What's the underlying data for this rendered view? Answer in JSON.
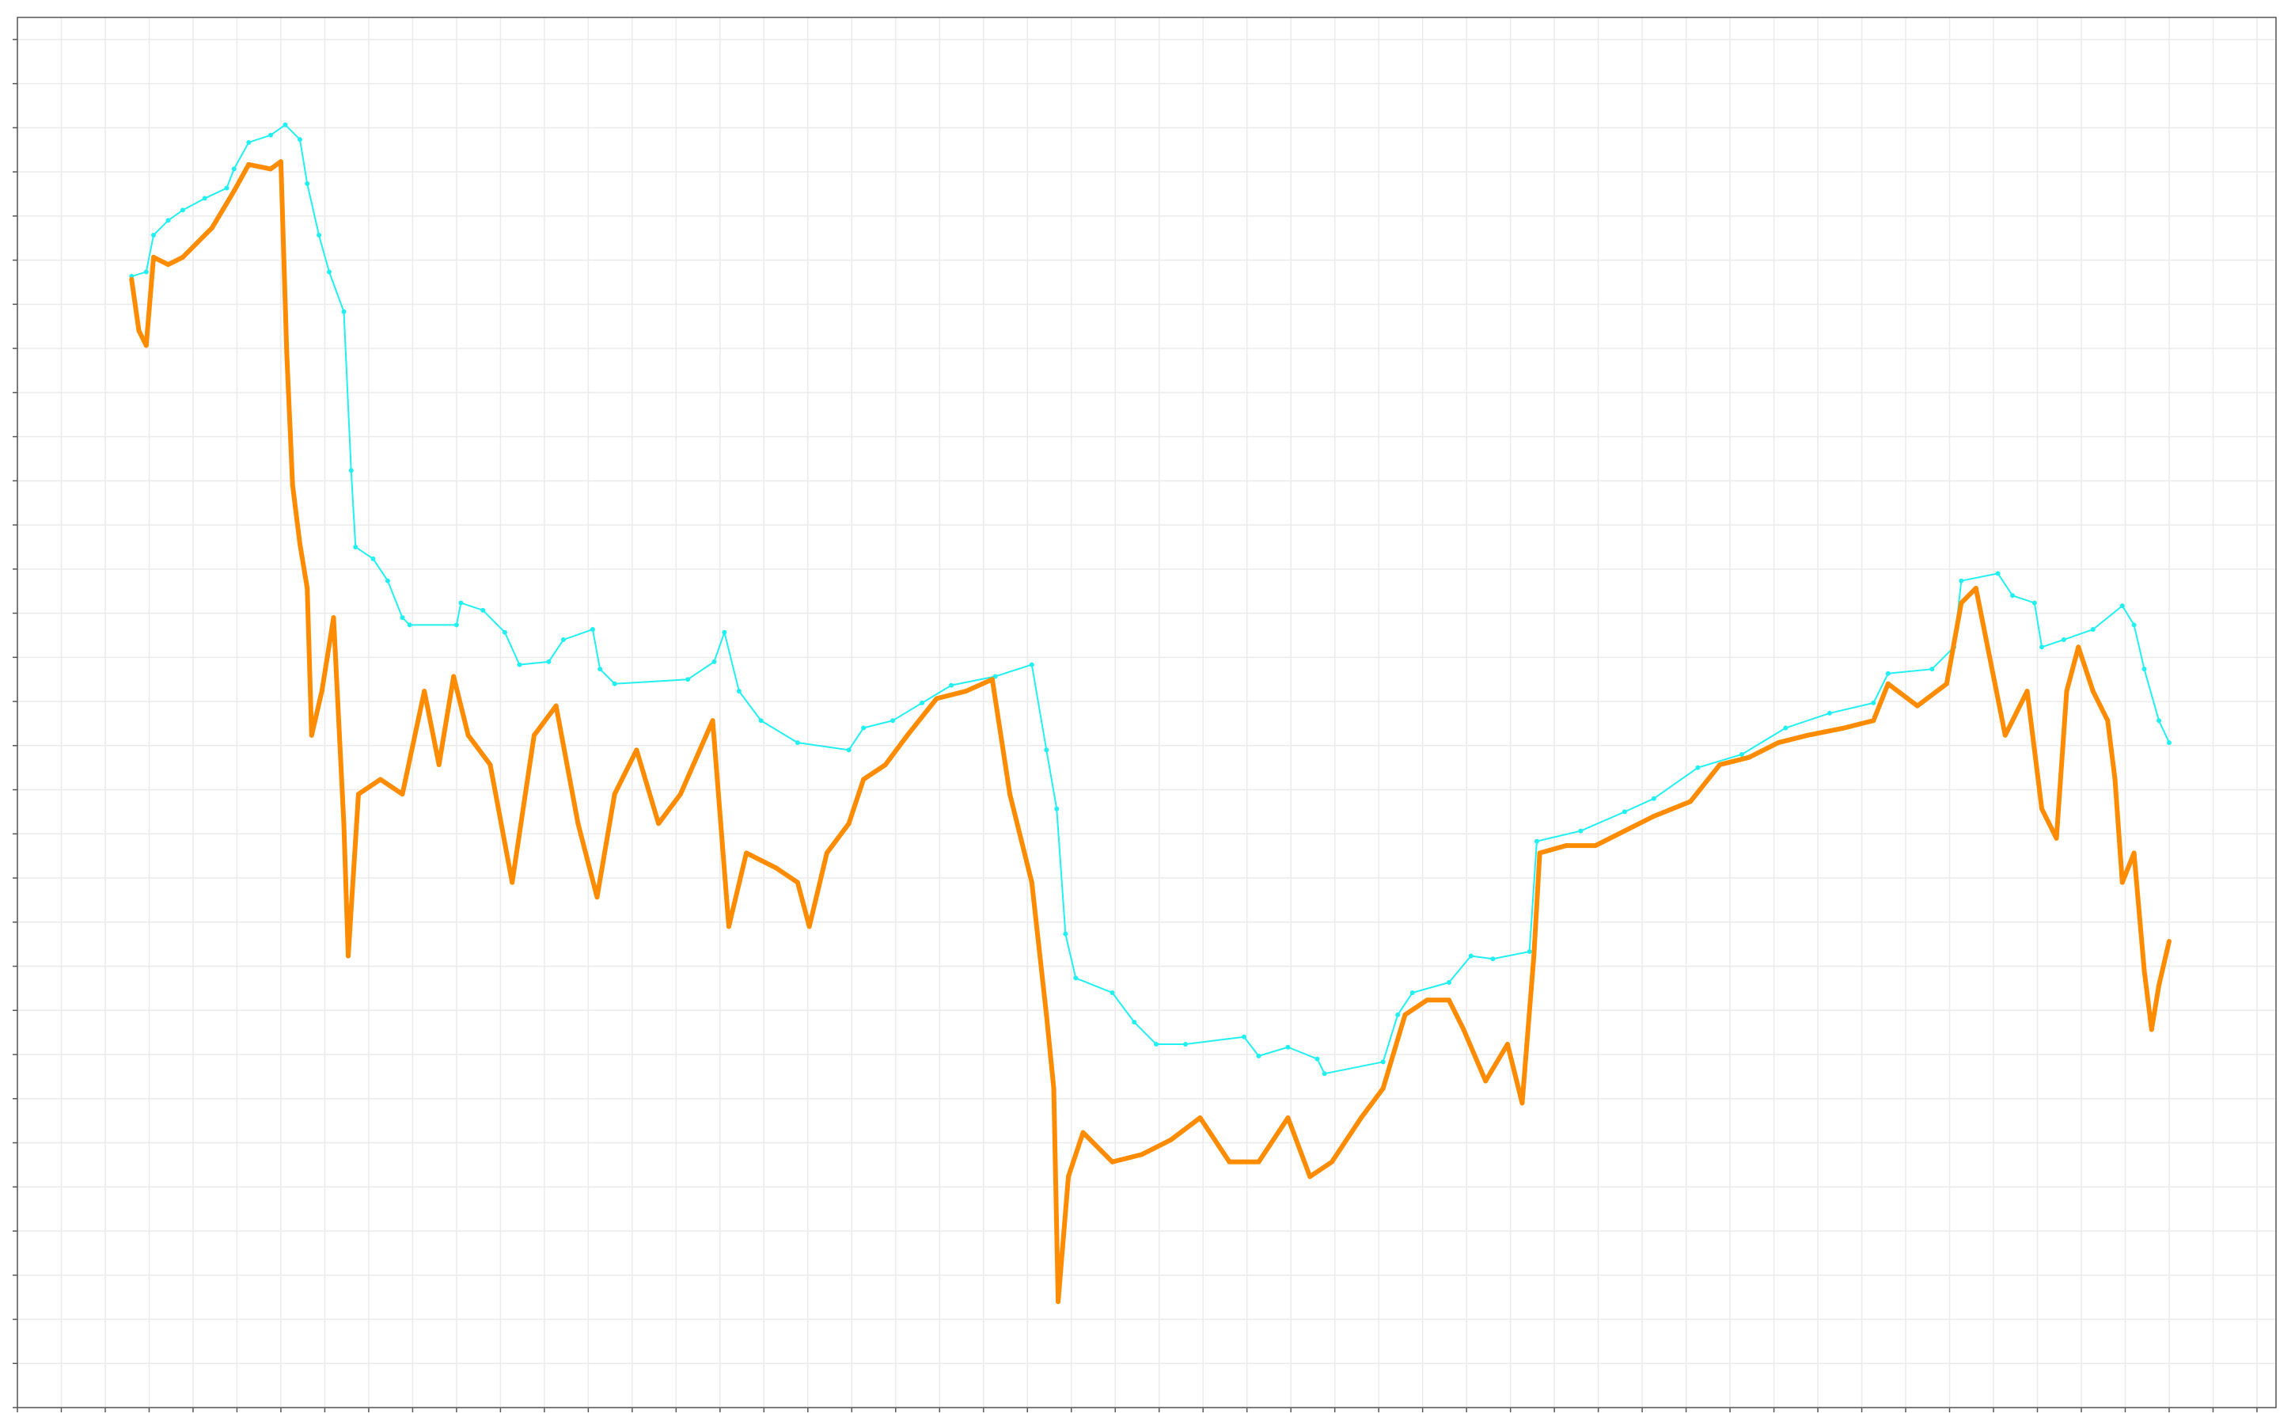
{
  "chart_data": {
    "type": "line",
    "xlim": [
      0,
      1543
    ],
    "ylim": [
      0,
      945
    ],
    "grid": true,
    "xticks": [
      0,
      30,
      60,
      90,
      120,
      150,
      180,
      210,
      240,
      270,
      300,
      330,
      360,
      390,
      420,
      450,
      480,
      510,
      540,
      570,
      600,
      630,
      660,
      690,
      720,
      750,
      780,
      810,
      840,
      870,
      900,
      930,
      960,
      990,
      1020,
      1050,
      1080,
      1110,
      1140,
      1170,
      1200,
      1230,
      1260,
      1290,
      1320,
      1350,
      1380,
      1410,
      1440,
      1470,
      1500,
      1530
    ],
    "yticks": [
      0,
      30,
      60,
      90,
      120,
      150,
      180,
      210,
      240,
      270,
      300,
      330,
      360,
      390,
      420,
      450,
      480,
      510,
      540,
      570,
      600,
      630,
      660,
      690,
      720,
      750,
      780,
      810,
      840,
      870,
      900,
      930
    ],
    "series": [
      {
        "color": "#22f0f0",
        "width": 2,
        "marker": 3,
        "x": [
          78,
          88,
          93,
          103,
          113,
          128,
          143,
          148,
          158,
          173,
          183,
          193,
          198,
          206,
          213,
          223,
          228,
          231,
          243,
          253,
          263,
          268,
          300,
          303,
          318,
          333,
          343,
          363,
          373,
          393,
          398,
          408,
          458,
          476,
          483,
          493,
          508,
          533,
          568,
          578,
          598,
          618,
          638,
          668,
          693,
          703,
          710,
          716,
          723,
          748,
          763,
          778,
          798,
          838,
          848,
          868,
          888,
          893,
          933,
          943,
          953,
          978,
          993,
          1008,
          1033,
          1038,
          1068,
          1098,
          1118,
          1148,
          1178,
          1208,
          1238,
          1268,
          1278,
          1308,
          1323,
          1328,
          1353,
          1363,
          1378,
          1383,
          1398,
          1418,
          1438,
          1446,
          1453,
          1463,
          1470
        ],
        "values": [
          769,
          772,
          797,
          807,
          814,
          822,
          829,
          842,
          860,
          865,
          872,
          862,
          832,
          797,
          772,
          745,
          637,
          585,
          577,
          562,
          537,
          532,
          532,
          547,
          542,
          527,
          505,
          507,
          522,
          529,
          502,
          492,
          495,
          507,
          527,
          487,
          467,
          452,
          447,
          462,
          467,
          479,
          491,
          497,
          505,
          447,
          407,
          322,
          292,
          282,
          262,
          247,
          247,
          252,
          239,
          245,
          237,
          227,
          235,
          267,
          282,
          289,
          307,
          305,
          310,
          385,
          392,
          405,
          414,
          435,
          444,
          462,
          472,
          479,
          499,
          502,
          517,
          562,
          567,
          552,
          547,
          517,
          522,
          529,
          545,
          532,
          502,
          467,
          452
        ]
      },
      {
        "color": "#ff8c00",
        "width": 6,
        "marker": 3,
        "x": [
          78,
          83,
          88,
          93,
          103,
          113,
          123,
          133,
          148,
          158,
          173,
          180,
          184,
          188,
          193,
          198,
          201,
          208,
          216,
          223,
          226,
          233,
          248,
          263,
          278,
          288,
          298,
          308,
          323,
          338,
          353,
          368,
          383,
          396,
          408,
          423,
          438,
          453,
          475,
          486,
          498,
          518,
          533,
          541,
          553,
          568,
          578,
          593,
          608,
          628,
          648,
          666,
          678,
          693,
          703,
          708,
          711,
          718,
          728,
          748,
          768,
          788,
          808,
          828,
          848,
          868,
          883,
          898,
          918,
          933,
          948,
          963,
          978,
          988,
          1003,
          1018,
          1028,
          1036,
          1040,
          1058,
          1078,
          1098,
          1118,
          1143,
          1163,
          1183,
          1203,
          1223,
          1248,
          1268,
          1278,
          1298,
          1318,
          1328,
          1338,
          1348,
          1358,
          1373,
          1383,
          1393,
          1400,
          1408,
          1418,
          1428,
          1433,
          1438,
          1446,
          1453,
          1458,
          1463,
          1470
        ],
        "values": [
          767,
          732,
          722,
          782,
          777,
          782,
          792,
          802,
          827,
          845,
          842,
          847,
          717,
          627,
          587,
          557,
          457,
          487,
          537,
          397,
          307,
          417,
          427,
          417,
          487,
          437,
          497,
          457,
          437,
          357,
          457,
          477,
          397,
          347,
          417,
          447,
          397,
          417,
          467,
          327,
          377,
          367,
          357,
          327,
          377,
          397,
          427,
          437,
          457,
          482,
          487,
          495,
          417,
          357,
          267,
          217,
          72,
          157,
          187,
          167,
          172,
          182,
          197,
          167,
          167,
          197,
          157,
          167,
          197,
          217,
          267,
          277,
          277,
          257,
          222,
          247,
          207,
          307,
          377,
          382,
          382,
          392,
          402,
          412,
          437,
          442,
          452,
          457,
          462,
          467,
          492,
          477,
          492,
          547,
          557,
          507,
          457,
          487,
          407,
          387,
          487,
          517,
          487,
          467,
          427,
          357,
          377,
          297,
          257,
          287,
          317
        ]
      }
    ]
  }
}
